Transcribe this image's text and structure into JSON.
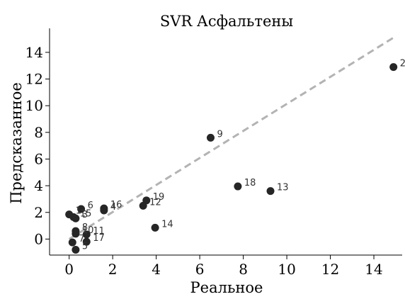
{
  "chart_data": {
    "type": "scatter",
    "title": "SVR Асфальтены",
    "xlabel": "Реальное",
    "ylabel": "Предсказанное",
    "xlim": [
      -0.9,
      15.3
    ],
    "ylim": [
      -1.2,
      15.8
    ],
    "xticks": [
      0,
      2,
      4,
      6,
      8,
      10,
      12,
      14
    ],
    "yticks": [
      0,
      2,
      4,
      6,
      8,
      10,
      12,
      14
    ],
    "grid": false,
    "reference_line": {
      "style": "dashed",
      "color": "#b3b3b3",
      "from": [
        0,
        0
      ],
      "to": [
        14.9,
        15.1
      ]
    },
    "point_color": "#262626",
    "points": [
      {
        "label": "2",
        "x": 14.9,
        "y": 12.9
      },
      {
        "label": "9",
        "x": 6.5,
        "y": 7.6
      },
      {
        "label": "18",
        "x": 7.75,
        "y": 3.95
      },
      {
        "label": "13",
        "x": 9.25,
        "y": 3.6
      },
      {
        "label": "19",
        "x": 3.55,
        "y": 2.9
      },
      {
        "label": "12",
        "x": 3.4,
        "y": 2.5
      },
      {
        "label": "14",
        "x": 3.95,
        "y": 0.85
      },
      {
        "label": "6",
        "x": 0.55,
        "y": 2.25
      },
      {
        "label": "16",
        "x": 1.6,
        "y": 2.3
      },
      {
        "label": "4",
        "x": 1.6,
        "y": 2.15
      },
      {
        "label": "1",
        "x": 0.0,
        "y": 1.85
      },
      {
        "label": "15",
        "x": 0.2,
        "y": 1.65
      },
      {
        "label": "3",
        "x": 0.3,
        "y": 1.55
      },
      {
        "label": "8",
        "x": 0.3,
        "y": 0.6
      },
      {
        "label": "10",
        "x": 0.3,
        "y": 0.4
      },
      {
        "label": "11",
        "x": 0.8,
        "y": 0.35
      },
      {
        "label": "17",
        "x": 0.8,
        "y": -0.2
      },
      {
        "label": "7",
        "x": 0.15,
        "y": -0.25
      },
      {
        "label": "5",
        "x": 0.3,
        "y": -0.8
      }
    ]
  }
}
